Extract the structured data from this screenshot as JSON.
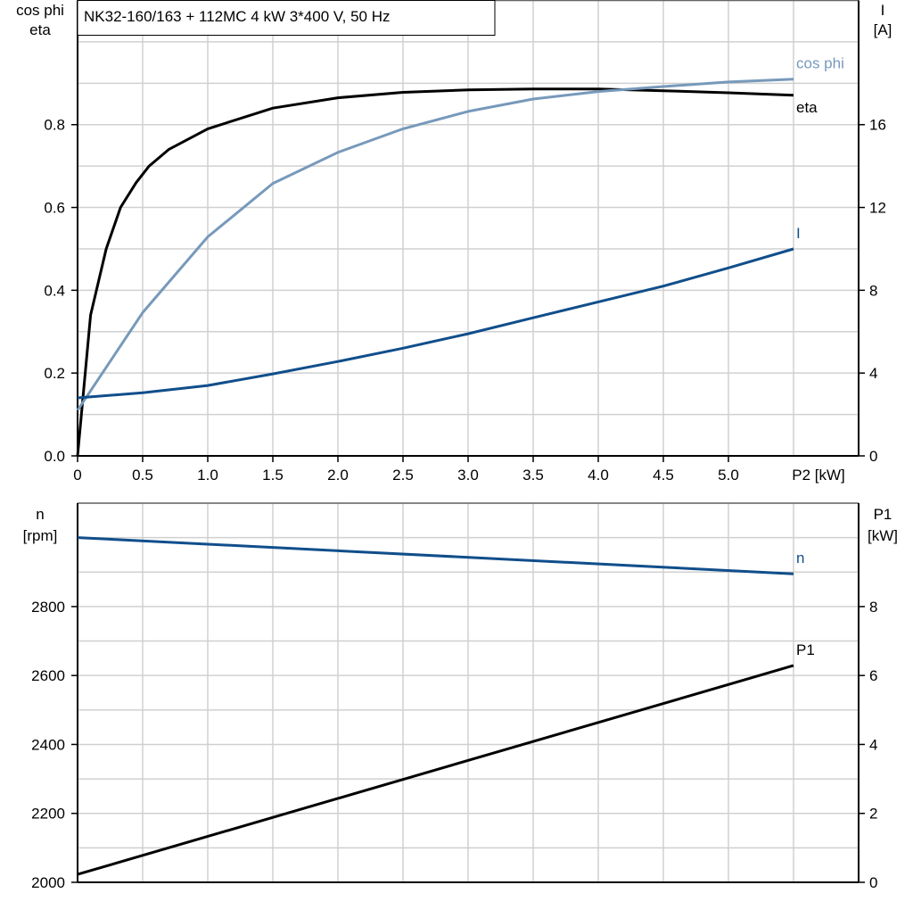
{
  "title": "NK32-160/163 + 112MC   4 kW   3*400 V, 50 Hz",
  "chart_data": [
    {
      "type": "line",
      "xlabel": "P2 [kW]",
      "ylabel_left": [
        "cos phi",
        "eta"
      ],
      "ylabel_right": [
        "I",
        "[A]"
      ],
      "xlim": [
        0,
        6
      ],
      "ylim_left": [
        0,
        1.1
      ],
      "ylim_right": [
        0,
        22
      ],
      "x_ticks": [
        "0",
        "0.5",
        "1.0",
        "1.5",
        "2.0",
        "2.5",
        "3.0",
        "3.5",
        "4.0",
        "4.5",
        "5.0"
      ],
      "y_left_ticks": [
        "0.0",
        "0.2",
        "0.4",
        "0.6",
        "0.8"
      ],
      "y_right_ticks": [
        "0",
        "4",
        "8",
        "12",
        "16"
      ],
      "grid": true,
      "series": [
        {
          "name": "eta",
          "axis": "left",
          "color": "#000000",
          "x": [
            0,
            0.1,
            0.22,
            0.33,
            0.45,
            0.55,
            0.7,
            1.0,
            1.5,
            2.0,
            2.5,
            3.0,
            3.5,
            4.0,
            4.5,
            5.0,
            5.5
          ],
          "y": [
            0,
            0.34,
            0.5,
            0.6,
            0.66,
            0.7,
            0.74,
            0.79,
            0.84,
            0.865,
            0.878,
            0.884,
            0.886,
            0.886,
            0.882,
            0.877,
            0.871
          ]
        },
        {
          "name": "cos phi",
          "axis": "left",
          "color": "#7799bb",
          "x": [
            0,
            0.5,
            1.0,
            1.5,
            2.0,
            2.5,
            3.0,
            3.5,
            4.0,
            4.5,
            5.0,
            5.5
          ],
          "y": [
            0.11,
            0.346,
            0.529,
            0.658,
            0.733,
            0.79,
            0.832,
            0.862,
            0.88,
            0.892,
            0.903,
            0.91
          ]
        },
        {
          "name": "I",
          "axis": "right",
          "color": "#104e8b",
          "x": [
            0,
            0.5,
            1.0,
            1.5,
            2.0,
            2.5,
            3.0,
            3.5,
            4.0,
            4.5,
            5.0,
            5.5
          ],
          "y": [
            2.8,
            3.05,
            3.4,
            3.96,
            4.56,
            5.2,
            5.9,
            6.67,
            7.44,
            8.2,
            9.08,
            10.0
          ]
        }
      ]
    },
    {
      "type": "line",
      "ylabel_left": [
        "n",
        "[rpm]"
      ],
      "ylabel_right": [
        "P1",
        "[kW]"
      ],
      "xlim": [
        0,
        6
      ],
      "ylim_left": [
        2000,
        3100
      ],
      "ylim_right": [
        0,
        11
      ],
      "y_left_ticks": [
        "2000",
        "2200",
        "2400",
        "2600",
        "2800"
      ],
      "y_right_ticks": [
        "0",
        "2",
        "4",
        "6",
        "8"
      ],
      "grid": true,
      "series": [
        {
          "name": "n",
          "axis": "left",
          "color": "#104e8b",
          "x": [
            0,
            5.5
          ],
          "y": [
            3000,
            2895
          ]
        },
        {
          "name": "P1",
          "axis": "right",
          "color": "#000000",
          "x": [
            0,
            5.5
          ],
          "y": [
            0.23,
            6.29
          ]
        }
      ]
    }
  ]
}
